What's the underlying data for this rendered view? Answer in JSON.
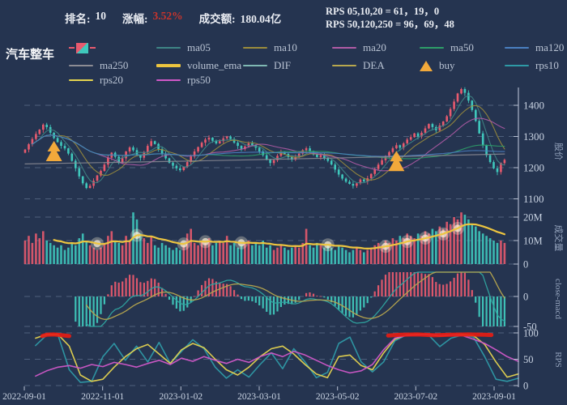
{
  "header": {
    "rank_label": "排名:",
    "rank_value": "10",
    "change_label": "涨幅:",
    "change_value": "3.52%",
    "turnover_label": "成交额:",
    "turnover_value": "180.04亿",
    "rps_line1": "RPS 05,10,20 = 61，19，0",
    "rps_line2": "RPS 50,120,250 = 96，69，48",
    "sector_title": "汽车整车"
  },
  "colors": {
    "background": "#253450",
    "up": "#e85a6e",
    "down": "#3fc8bc",
    "ma05": "#3f8585",
    "ma10": "#9b8c3c",
    "ma20": "#b05ba5",
    "ma50": "#2e9e68",
    "ma120": "#4a7fc1",
    "ma250": "#8c8c94",
    "volume_ema": "#edc53f",
    "dif": "#2fa5a0",
    "dea": "#b8a84e",
    "buy": "#f2a93b",
    "rps10": "#2e9aa6",
    "rps20": "#e5d44f",
    "rps50": "#d058c8",
    "rps_highlight": "#ea1c12",
    "grid": "rgba(150,168,200,0.38)",
    "spine": "#b7c0d2",
    "tick_text": "#c9d3e2",
    "axis_title": "#93a2bb",
    "glow": "#fff4dc",
    "change_red": "#c9342c"
  },
  "legend": {
    "cols": [
      85,
      193,
      300,
      410,
      518,
      623
    ],
    "row_tops": [
      51,
      73,
      91
    ],
    "rows": [
      [
        {
          "id": "candle",
          "label": "",
          "type": "candle"
        },
        {
          "id": "ma05",
          "label": "ma05",
          "type": "line",
          "color": "#3f8585"
        },
        {
          "id": "ma10",
          "label": "ma10",
          "type": "line",
          "color": "#9b8c3c"
        },
        {
          "id": "ma20",
          "label": "ma20",
          "type": "line",
          "color": "#b05ba5"
        },
        {
          "id": "ma50",
          "label": "ma50",
          "type": "line",
          "color": "#2e9e68"
        },
        {
          "id": "ma120",
          "label": "ma120",
          "type": "line",
          "color": "#4a7fc1"
        }
      ],
      [
        {
          "id": "ma250",
          "label": "ma250",
          "type": "line",
          "color": "#8c8c94"
        },
        {
          "id": "volume_ema",
          "label": "volume_ema",
          "type": "thickline",
          "color": "#edc53f"
        },
        {
          "id": "dif",
          "label": "DIF",
          "type": "line",
          "color": "#7fb8b3"
        },
        {
          "id": "dea",
          "label": "DEA",
          "type": "line",
          "color": "#b8a84e"
        },
        {
          "id": "buy",
          "label": "buy",
          "type": "triangle",
          "color": "#f2a93b"
        },
        {
          "id": "rps10",
          "label": "rps10",
          "type": "line",
          "color": "#2e9aa6"
        }
      ],
      [
        {
          "id": "rps20",
          "label": "rps20",
          "type": "line",
          "color": "#e5d44f"
        },
        {
          "id": "rps50",
          "label": "rps50",
          "type": "line",
          "color": "#d058c8"
        }
      ]
    ]
  },
  "chart_data": {
    "type": "candlestick-multi-panel",
    "x_range": [
      "2022-09-01",
      "2023-09-01"
    ],
    "axes": {
      "price": {
        "title": "股价",
        "ticks": [
          {
            "v": 1100,
            "l": "1100"
          },
          {
            "v": 1200,
            "l": "1200"
          },
          {
            "v": 1300,
            "l": "1300"
          },
          {
            "v": 1400,
            "l": "1400"
          }
        ]
      },
      "volume": {
        "title": "成交量",
        "ticks": [
          {
            "v": 0,
            "l": "0"
          },
          {
            "v": 10,
            "l": "10M"
          },
          {
            "v": 20,
            "l": "20M"
          }
        ]
      },
      "macd": {
        "title": "close-macd",
        "ticks": [
          {
            "v": -50,
            "l": "-50"
          },
          {
            "v": 0,
            "l": "0"
          }
        ]
      },
      "rps": {
        "title": "RPS",
        "ticks": [
          {
            "v": 0,
            "l": "0"
          },
          {
            "v": 50,
            "l": "50"
          },
          {
            "v": 100,
            "l": "100"
          }
        ]
      },
      "x_dates": [
        "2022-09-01",
        "2022-11-01",
        "2023-01-02",
        "2023-03-01",
        "2023-05-02",
        "2023-07-02",
        "2023-09-01"
      ]
    },
    "price": {
      "ylim": [
        1080,
        1470
      ],
      "closes": [
        1258,
        1275,
        1292,
        1308,
        1322,
        1338,
        1330,
        1312,
        1295,
        1282,
        1270,
        1262,
        1245,
        1222,
        1198,
        1172,
        1150,
        1135,
        1142,
        1158,
        1175,
        1190,
        1210,
        1232,
        1248,
        1235,
        1215,
        1230,
        1252,
        1265,
        1256,
        1240,
        1232,
        1250,
        1270,
        1285,
        1276,
        1260,
        1244,
        1230,
        1216,
        1206,
        1198,
        1192,
        1202,
        1218,
        1236,
        1252,
        1266,
        1280,
        1290,
        1296,
        1286,
        1278,
        1285,
        1294,
        1300,
        1292,
        1280,
        1270,
        1260,
        1268,
        1278,
        1272,
        1264,
        1252,
        1240,
        1226,
        1215,
        1224,
        1238,
        1250,
        1244,
        1234,
        1226,
        1234,
        1245,
        1256,
        1262,
        1253,
        1242,
        1234,
        1240,
        1231,
        1222,
        1210,
        1194,
        1178,
        1165,
        1155,
        1148,
        1142,
        1150,
        1162,
        1156,
        1166,
        1180,
        1196,
        1210,
        1224,
        1238,
        1250,
        1262,
        1272,
        1264,
        1278,
        1290,
        1298,
        1310,
        1300,
        1312,
        1326,
        1340,
        1330,
        1320,
        1335,
        1348,
        1365,
        1388,
        1412,
        1438,
        1452,
        1440,
        1415,
        1385,
        1350,
        1310,
        1272,
        1240,
        1218,
        1198,
        1186,
        1215,
        1225
      ],
      "ma_windows": [
        5,
        10,
        20,
        50,
        120
      ],
      "ma250_points": [
        [
          0,
          1212
        ],
        [
          45,
          1221
        ],
        [
          90,
          1232
        ],
        [
          133,
          1244
        ]
      ],
      "buy_marker_indices": [
        8,
        103
      ]
    },
    "volume": {
      "ylim": [
        0,
        23
      ],
      "unit": "M",
      "values": [
        10,
        12,
        9,
        13,
        11,
        14,
        10,
        9,
        8,
        7,
        8,
        6,
        7,
        9,
        8,
        11,
        13,
        10,
        8,
        7,
        6,
        7,
        9,
        12,
        14,
        10,
        9,
        8,
        12,
        10,
        22,
        19,
        13,
        11,
        9,
        12,
        8,
        7,
        9,
        8,
        7,
        6,
        7,
        6,
        8,
        13,
        15,
        9,
        8,
        10,
        9,
        11,
        8,
        9,
        10,
        9,
        12,
        8,
        9,
        7,
        8,
        9,
        10,
        8,
        9,
        8,
        10,
        7,
        8,
        6,
        7,
        8,
        7,
        6,
        7,
        8,
        7,
        9,
        15,
        8,
        7,
        9,
        8,
        7,
        8,
        7,
        6,
        8,
        7,
        6,
        5,
        6,
        7,
        6,
        5,
        6,
        7,
        8,
        9,
        8,
        10,
        9,
        11,
        10,
        12,
        11,
        13,
        12,
        11,
        13,
        12,
        14,
        13,
        15,
        14,
        16,
        15,
        18,
        17,
        20,
        19,
        22,
        21,
        19,
        17,
        16,
        14,
        13,
        12,
        11,
        10,
        9,
        10,
        9
      ],
      "ema_span": 15,
      "glow_indices": [
        20,
        31,
        44,
        50,
        60,
        84,
        100,
        106,
        111,
        116,
        120
      ]
    },
    "macd": {
      "ylim": [
        -55,
        42
      ],
      "derived_from": "closes",
      "fast": 12,
      "slow": 26,
      "signal": 9
    },
    "rps": {
      "ylim": [
        0,
        105
      ],
      "n_points": 45,
      "rps10": [
        70,
        76,
        96,
        96,
        30,
        6,
        8,
        55,
        80,
        48,
        75,
        45,
        82,
        42,
        65,
        87,
        70,
        35,
        14,
        30,
        16,
        40,
        62,
        32,
        70,
        45,
        15,
        25,
        80,
        92,
        45,
        26,
        45,
        85,
        96,
        97,
        96,
        74,
        90,
        96,
        92,
        55,
        12,
        8,
        14
      ],
      "rps20": [
        80,
        90,
        97,
        97,
        75,
        20,
        8,
        12,
        35,
        55,
        70,
        78,
        60,
        42,
        68,
        80,
        72,
        50,
        30,
        20,
        35,
        55,
        70,
        75,
        60,
        40,
        22,
        15,
        55,
        58,
        38,
        30,
        62,
        88,
        96,
        97,
        97,
        94,
        96,
        97,
        95,
        78,
        45,
        16,
        22
      ],
      "rps50": [
        12,
        18,
        28,
        35,
        38,
        33,
        40,
        36,
        44,
        40,
        35,
        42,
        48,
        40,
        52,
        46,
        55,
        48,
        42,
        50,
        44,
        55,
        62,
        55,
        65,
        58,
        48,
        38,
        30,
        24,
        28,
        40,
        68,
        90,
        95,
        96,
        97,
        95,
        96,
        95,
        88,
        80,
        68,
        55,
        46
      ],
      "highlight_segments": [
        [
          [
            1.6,
            94
          ],
          [
            2.0,
            96.5
          ],
          [
            2.6,
            97
          ],
          [
            3.2,
            96
          ],
          [
            4.0,
            94
          ]
        ],
        [
          [
            32.4,
            95
          ],
          [
            33.5,
            96.5
          ],
          [
            35,
            97
          ],
          [
            36.5,
            95.5
          ],
          [
            38,
            96.5
          ],
          [
            39.5,
            97
          ],
          [
            41,
            96.5
          ],
          [
            41.6,
            96
          ]
        ]
      ]
    }
  }
}
